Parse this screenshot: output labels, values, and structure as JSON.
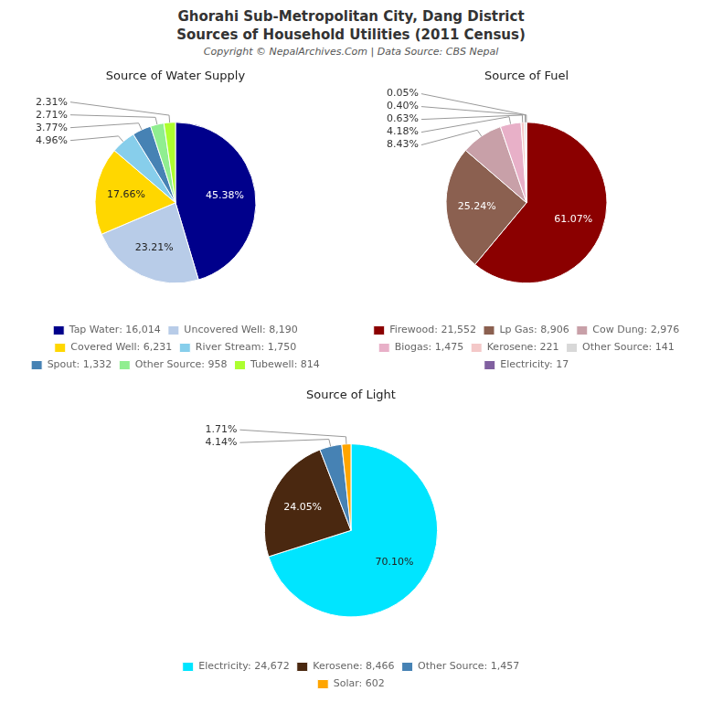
{
  "title": "Ghorahi Sub-Metropolitan City, Dang District",
  "subtitle": "Sources of Household Utilities (2011 Census)",
  "annotations": [
    "Copyright © NepalArchives.Com | Data Source: CBS Nepal"
  ],
  "chart_data": [
    {
      "type": "pie",
      "title": "Source of Water Supply",
      "categories": [
        "Tap Water: 16,014",
        "Uncovered Well: 8,190",
        "Covered Well: 6,231",
        "River Stream: 1,750",
        "Spout: 1,332",
        "Other Source: 958",
        "Tubewell: 814"
      ],
      "values": [
        45.38,
        23.21,
        17.66,
        4.96,
        3.77,
        2.71,
        2.31
      ],
      "value_labels": [
        "45.38%",
        "23.21%",
        "17.66%",
        "4.96%",
        "3.77%",
        "2.71%",
        "2.31%"
      ],
      "colors": [
        "#00008B",
        "#B8CCE8",
        "#FFD700",
        "#87CEEB",
        "#4682B4",
        "#90EE90",
        "#ADFF2F"
      ],
      "data_labels": true,
      "legend": "bottom"
    },
    {
      "type": "pie",
      "title": "Source of Fuel",
      "categories": [
        "Firewood: 21,552",
        "Lp Gas: 8,906",
        "Cow Dung: 2,976",
        "Biogas: 1,475",
        "Kerosene: 221",
        "Other Source: 141",
        "Electricity: 17"
      ],
      "values": [
        61.07,
        25.24,
        8.43,
        4.18,
        0.63,
        0.4,
        0.05
      ],
      "value_labels": [
        "61.07%",
        "25.24%",
        "8.43%",
        "4.18%",
        "0.63%",
        "0.40%",
        "0.05%"
      ],
      "colors": [
        "#8B0000",
        "#8B6050",
        "#C8A0A8",
        "#E8B0C8",
        "#F4C8C8",
        "#D8D8D8",
        "#8060A0"
      ],
      "data_labels": true,
      "legend": "bottom"
    },
    {
      "type": "pie",
      "title": "Source of Light",
      "categories": [
        "Electricity: 24,672",
        "Kerosene: 8,466",
        "Other Source: 1,457",
        "Solar: 602"
      ],
      "values": [
        70.1,
        24.05,
        4.14,
        1.71
      ],
      "value_labels": [
        "70.10%",
        "24.05%",
        "4.14%",
        "1.71%"
      ],
      "colors": [
        "#00E5FF",
        "#4A2810",
        "#4682B4",
        "#FFA500"
      ],
      "data_labels": true,
      "legend": "bottom"
    }
  ]
}
